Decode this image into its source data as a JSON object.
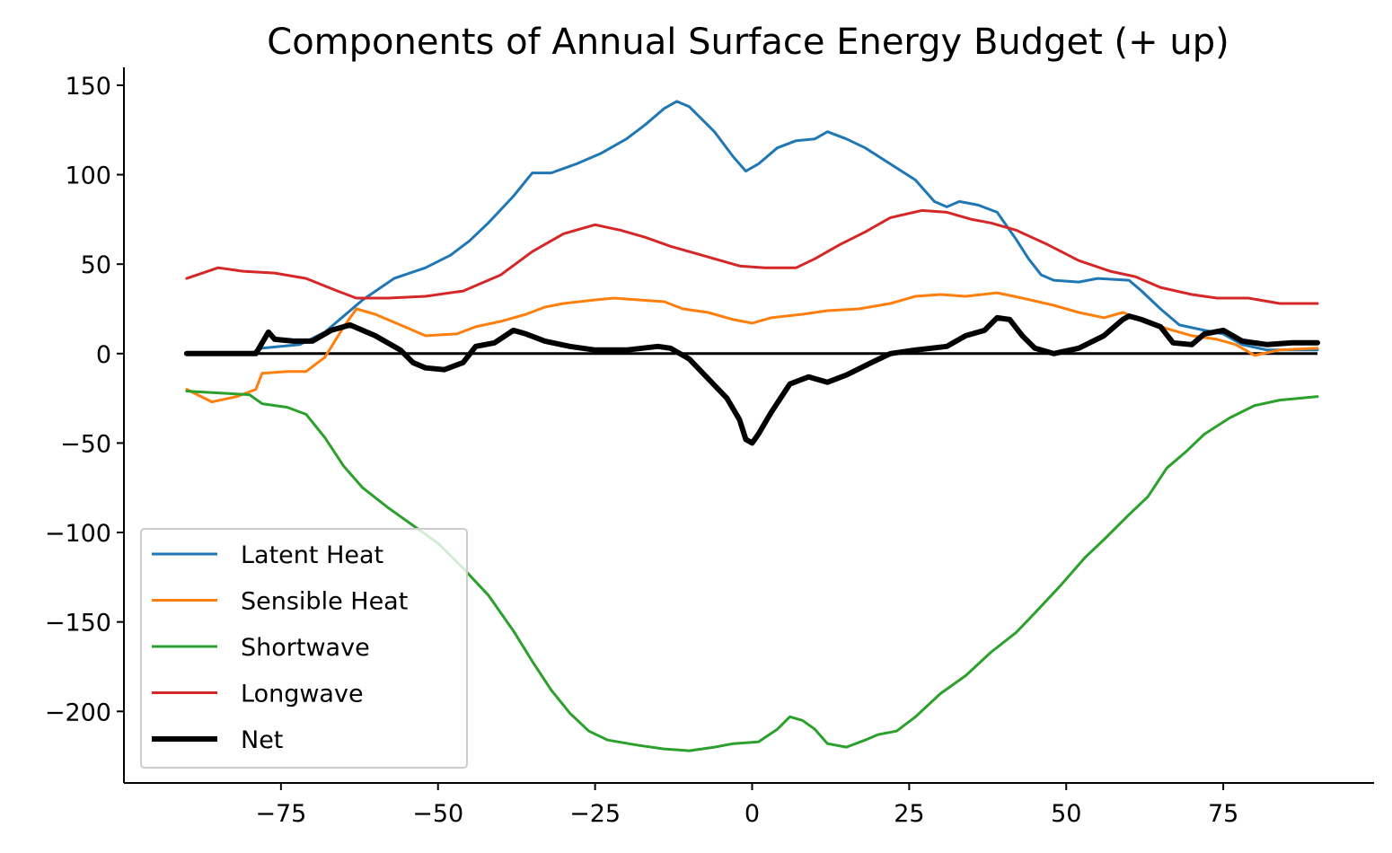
{
  "chart_data": {
    "type": "line",
    "title": "Components of Annual Surface Energy Budget (+ up)",
    "xlabel": "",
    "ylabel": "",
    "xlim": [
      -100,
      99
    ],
    "ylim": [
      -240,
      160
    ],
    "xticks": [
      -75,
      -50,
      -25,
      0,
      25,
      50,
      75
    ],
    "yticks": [
      150,
      100,
      50,
      0,
      -50,
      -100,
      -150,
      -200
    ],
    "xtick_labels": [
      "−75",
      "−50",
      "−25",
      "0",
      "25",
      "50",
      "75"
    ],
    "ytick_labels": [
      "150",
      "100",
      "50",
      "0",
      "−50",
      "−100",
      "−150",
      "−200"
    ],
    "grid": false,
    "legend_position": "lower-left",
    "zero_line": true,
    "series": [
      {
        "name": "Latent Heat",
        "color": "#1f77b4",
        "points": [
          [
            -90,
            0
          ],
          [
            -80,
            0
          ],
          [
            -78,
            3
          ],
          [
            -72,
            5
          ],
          [
            -68,
            12
          ],
          [
            -62,
            30
          ],
          [
            -57,
            42
          ],
          [
            -52,
            48
          ],
          [
            -48,
            55
          ],
          [
            -45,
            63
          ],
          [
            -42,
            73
          ],
          [
            -38,
            88
          ],
          [
            -35,
            101
          ],
          [
            -32,
            101
          ],
          [
            -28,
            106
          ],
          [
            -24,
            112
          ],
          [
            -20,
            120
          ],
          [
            -17,
            128
          ],
          [
            -14,
            137
          ],
          [
            -12,
            141
          ],
          [
            -10,
            138
          ],
          [
            -6,
            124
          ],
          [
            -3,
            110
          ],
          [
            -1,
            102
          ],
          [
            1,
            106
          ],
          [
            4,
            115
          ],
          [
            7,
            119
          ],
          [
            10,
            120
          ],
          [
            12,
            124
          ],
          [
            15,
            120
          ],
          [
            18,
            115
          ],
          [
            22,
            106
          ],
          [
            26,
            97
          ],
          [
            29,
            85
          ],
          [
            31,
            82
          ],
          [
            33,
            85
          ],
          [
            36,
            83
          ],
          [
            39,
            79
          ],
          [
            42,
            64
          ],
          [
            44,
            53
          ],
          [
            46,
            44
          ],
          [
            48,
            41
          ],
          [
            52,
            40
          ],
          [
            55,
            42
          ],
          [
            60,
            41
          ],
          [
            62,
            35
          ],
          [
            65,
            25
          ],
          [
            68,
            16
          ],
          [
            72,
            13
          ],
          [
            75,
            11
          ],
          [
            78,
            5
          ],
          [
            82,
            2
          ],
          [
            86,
            2
          ],
          [
            90,
            2
          ]
        ]
      },
      {
        "name": "Sensible Heat",
        "color": "#ff7f0e",
        "points": [
          [
            -90,
            -20
          ],
          [
            -86,
            -27
          ],
          [
            -82,
            -24
          ],
          [
            -79,
            -20
          ],
          [
            -78,
            -11
          ],
          [
            -74,
            -10
          ],
          [
            -71,
            -10
          ],
          [
            -68,
            -2
          ],
          [
            -65,
            15
          ],
          [
            -63,
            25
          ],
          [
            -60,
            22
          ],
          [
            -56,
            16
          ],
          [
            -52,
            10
          ],
          [
            -47,
            11
          ],
          [
            -44,
            15
          ],
          [
            -40,
            18
          ],
          [
            -36,
            22
          ],
          [
            -33,
            26
          ],
          [
            -30,
            28
          ],
          [
            -25,
            30
          ],
          [
            -22,
            31
          ],
          [
            -18,
            30
          ],
          [
            -14,
            29
          ],
          [
            -11,
            25
          ],
          [
            -7,
            23
          ],
          [
            -3,
            19
          ],
          [
            0,
            17
          ],
          [
            3,
            20
          ],
          [
            8,
            22
          ],
          [
            12,
            24
          ],
          [
            17,
            25
          ],
          [
            22,
            28
          ],
          [
            26,
            32
          ],
          [
            30,
            33
          ],
          [
            34,
            32
          ],
          [
            39,
            34
          ],
          [
            43,
            31
          ],
          [
            48,
            27
          ],
          [
            52,
            23
          ],
          [
            56,
            20
          ],
          [
            59,
            23
          ],
          [
            62,
            19
          ],
          [
            66,
            14
          ],
          [
            70,
            10
          ],
          [
            74,
            8
          ],
          [
            77,
            5
          ],
          [
            80,
            -1
          ],
          [
            84,
            2
          ],
          [
            90,
            3
          ]
        ]
      },
      {
        "name": "Shortwave",
        "color": "#2ca02c",
        "points": [
          [
            -90,
            -21
          ],
          [
            -85,
            -22
          ],
          [
            -80,
            -23
          ],
          [
            -78,
            -28
          ],
          [
            -74,
            -30
          ],
          [
            -71,
            -34
          ],
          [
            -68,
            -47
          ],
          [
            -65,
            -63
          ],
          [
            -62,
            -75
          ],
          [
            -58,
            -86
          ],
          [
            -54,
            -96
          ],
          [
            -50,
            -106
          ],
          [
            -46,
            -120
          ],
          [
            -42,
            -135
          ],
          [
            -38,
            -155
          ],
          [
            -35,
            -172
          ],
          [
            -32,
            -188
          ],
          [
            -29,
            -201
          ],
          [
            -26,
            -211
          ],
          [
            -23,
            -216
          ],
          [
            -18,
            -219
          ],
          [
            -14,
            -221
          ],
          [
            -10,
            -222
          ],
          [
            -6,
            -220
          ],
          [
            -3,
            -218
          ],
          [
            1,
            -217
          ],
          [
            4,
            -210
          ],
          [
            6,
            -203
          ],
          [
            8,
            -205
          ],
          [
            10,
            -210
          ],
          [
            12,
            -218
          ],
          [
            15,
            -220
          ],
          [
            18,
            -216
          ],
          [
            20,
            -213
          ],
          [
            23,
            -211
          ],
          [
            26,
            -203
          ],
          [
            30,
            -190
          ],
          [
            34,
            -180
          ],
          [
            38,
            -167
          ],
          [
            42,
            -156
          ],
          [
            45,
            -145
          ],
          [
            49,
            -130
          ],
          [
            53,
            -114
          ],
          [
            56,
            -104
          ],
          [
            60,
            -90
          ],
          [
            63,
            -80
          ],
          [
            66,
            -64
          ],
          [
            69,
            -55
          ],
          [
            72,
            -45
          ],
          [
            76,
            -36
          ],
          [
            80,
            -29
          ],
          [
            84,
            -26
          ],
          [
            90,
            -24
          ]
        ]
      },
      {
        "name": "Longwave",
        "color": "#d62728",
        "points": [
          [
            -90,
            42
          ],
          [
            -85,
            48
          ],
          [
            -81,
            46
          ],
          [
            -76,
            45
          ],
          [
            -71,
            42
          ],
          [
            -66,
            35
          ],
          [
            -63,
            31
          ],
          [
            -58,
            31
          ],
          [
            -52,
            32
          ],
          [
            -46,
            35
          ],
          [
            -40,
            44
          ],
          [
            -35,
            57
          ],
          [
            -30,
            67
          ],
          [
            -25,
            72
          ],
          [
            -21,
            69
          ],
          [
            -17,
            65
          ],
          [
            -13,
            60
          ],
          [
            -9,
            56
          ],
          [
            -5,
            52
          ],
          [
            -2,
            49
          ],
          [
            2,
            48
          ],
          [
            7,
            48
          ],
          [
            10,
            53
          ],
          [
            14,
            61
          ],
          [
            18,
            68
          ],
          [
            22,
            76
          ],
          [
            27,
            80
          ],
          [
            31,
            79
          ],
          [
            35,
            75
          ],
          [
            38,
            73
          ],
          [
            42,
            69
          ],
          [
            47,
            61
          ],
          [
            52,
            52
          ],
          [
            57,
            46
          ],
          [
            61,
            43
          ],
          [
            65,
            37
          ],
          [
            70,
            33
          ],
          [
            74,
            31
          ],
          [
            79,
            31
          ],
          [
            84,
            28
          ],
          [
            90,
            28
          ]
        ]
      },
      {
        "name": "Net",
        "color": "#000000",
        "points": [
          [
            -90,
            0
          ],
          [
            -79,
            0
          ],
          [
            -77,
            12
          ],
          [
            -76,
            8
          ],
          [
            -73,
            7
          ],
          [
            -70,
            7
          ],
          [
            -67,
            13
          ],
          [
            -64,
            16
          ],
          [
            -60,
            10
          ],
          [
            -56,
            2
          ],
          [
            -54,
            -5
          ],
          [
            -52,
            -8
          ],
          [
            -49,
            -9
          ],
          [
            -46,
            -5
          ],
          [
            -44,
            4
          ],
          [
            -41,
            6
          ],
          [
            -38,
            13
          ],
          [
            -36,
            11
          ],
          [
            -33,
            7
          ],
          [
            -29,
            4
          ],
          [
            -25,
            2
          ],
          [
            -20,
            2
          ],
          [
            -15,
            4
          ],
          [
            -13,
            3
          ],
          [
            -10,
            -3
          ],
          [
            -7,
            -14
          ],
          [
            -4,
            -25
          ],
          [
            -2,
            -37
          ],
          [
            -1,
            -48
          ],
          [
            0,
            -50
          ],
          [
            1,
            -45
          ],
          [
            3,
            -33
          ],
          [
            6,
            -17
          ],
          [
            9,
            -13
          ],
          [
            12,
            -16
          ],
          [
            15,
            -12
          ],
          [
            19,
            -5
          ],
          [
            22,
            0
          ],
          [
            26,
            2
          ],
          [
            31,
            4
          ],
          [
            34,
            10
          ],
          [
            37,
            13
          ],
          [
            39,
            20
          ],
          [
            41,
            19
          ],
          [
            43,
            10
          ],
          [
            45,
            3
          ],
          [
            48,
            0
          ],
          [
            52,
            3
          ],
          [
            56,
            10
          ],
          [
            59,
            19
          ],
          [
            60,
            21
          ],
          [
            62,
            19
          ],
          [
            65,
            15
          ],
          [
            67,
            6
          ],
          [
            70,
            5
          ],
          [
            72,
            11
          ],
          [
            75,
            13
          ],
          [
            78,
            7
          ],
          [
            82,
            5
          ],
          [
            86,
            6
          ],
          [
            90,
            6
          ]
        ]
      }
    ]
  }
}
